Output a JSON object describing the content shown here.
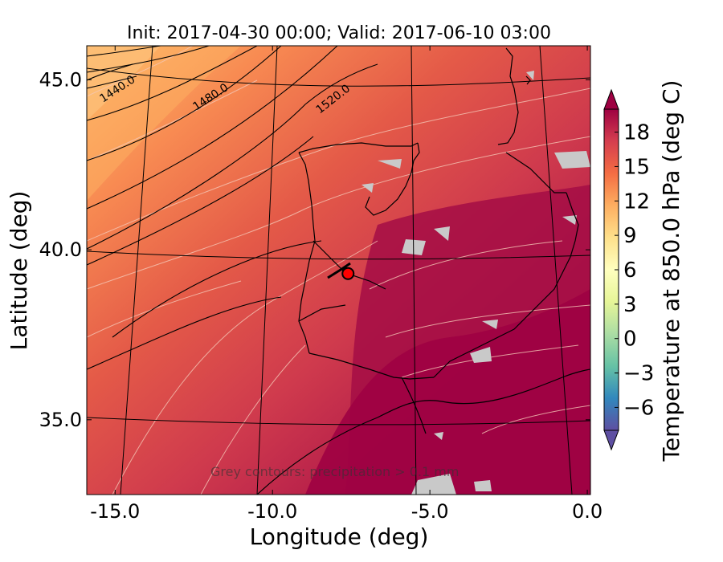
{
  "chart_data": {
    "type": "heatmap",
    "title": "Init: 2017-04-30 00:00; Valid: 2017-06-10 03:00",
    "xlabel": "Longitude (deg)",
    "ylabel": "Latitude (deg)",
    "xlim": [
      -15.9,
      0.1
    ],
    "ylim": [
      32.8,
      46.0
    ],
    "x_ticks": [
      -15.0,
      -10.0,
      -5.0,
      0.0
    ],
    "x_tick_labels": [
      "-15.0",
      "-10.0",
      "-5.0",
      "0.0"
    ],
    "y_ticks": [
      35.0,
      40.0,
      45.0
    ],
    "y_tick_labels": [
      "35.0",
      "40.0",
      "45.0"
    ],
    "colorbar": {
      "label": "Temperature at 850.0 hPa (deg C)",
      "min": -8,
      "max": 20,
      "extend": "both",
      "ticks": [
        -6,
        -3,
        0,
        3,
        6,
        9,
        12,
        15,
        18
      ],
      "tick_labels": [
        "−6",
        "−3",
        "0",
        "3",
        "6",
        "9",
        "12",
        "15",
        "18"
      ],
      "colormap": "Spectral_r",
      "colors": [
        "#5e4fa2",
        "#3288bd",
        "#66c2a5",
        "#abdda4",
        "#e6f598",
        "#ffffbf",
        "#fee08b",
        "#fdae61",
        "#f46d43",
        "#d53e4f",
        "#9e0142"
      ]
    },
    "geopotential_contours": [
      {
        "label": "1440.0",
        "value": 1440
      },
      {
        "label": "1480.0",
        "value": 1480
      },
      {
        "label": "1520.0",
        "value": 1520
      }
    ],
    "annotation": "Grey contours: precipitation > 0.1 mm",
    "marker": {
      "lon": -7.6,
      "lat": 39.3,
      "color": "#ff0000"
    },
    "grid": true
  }
}
